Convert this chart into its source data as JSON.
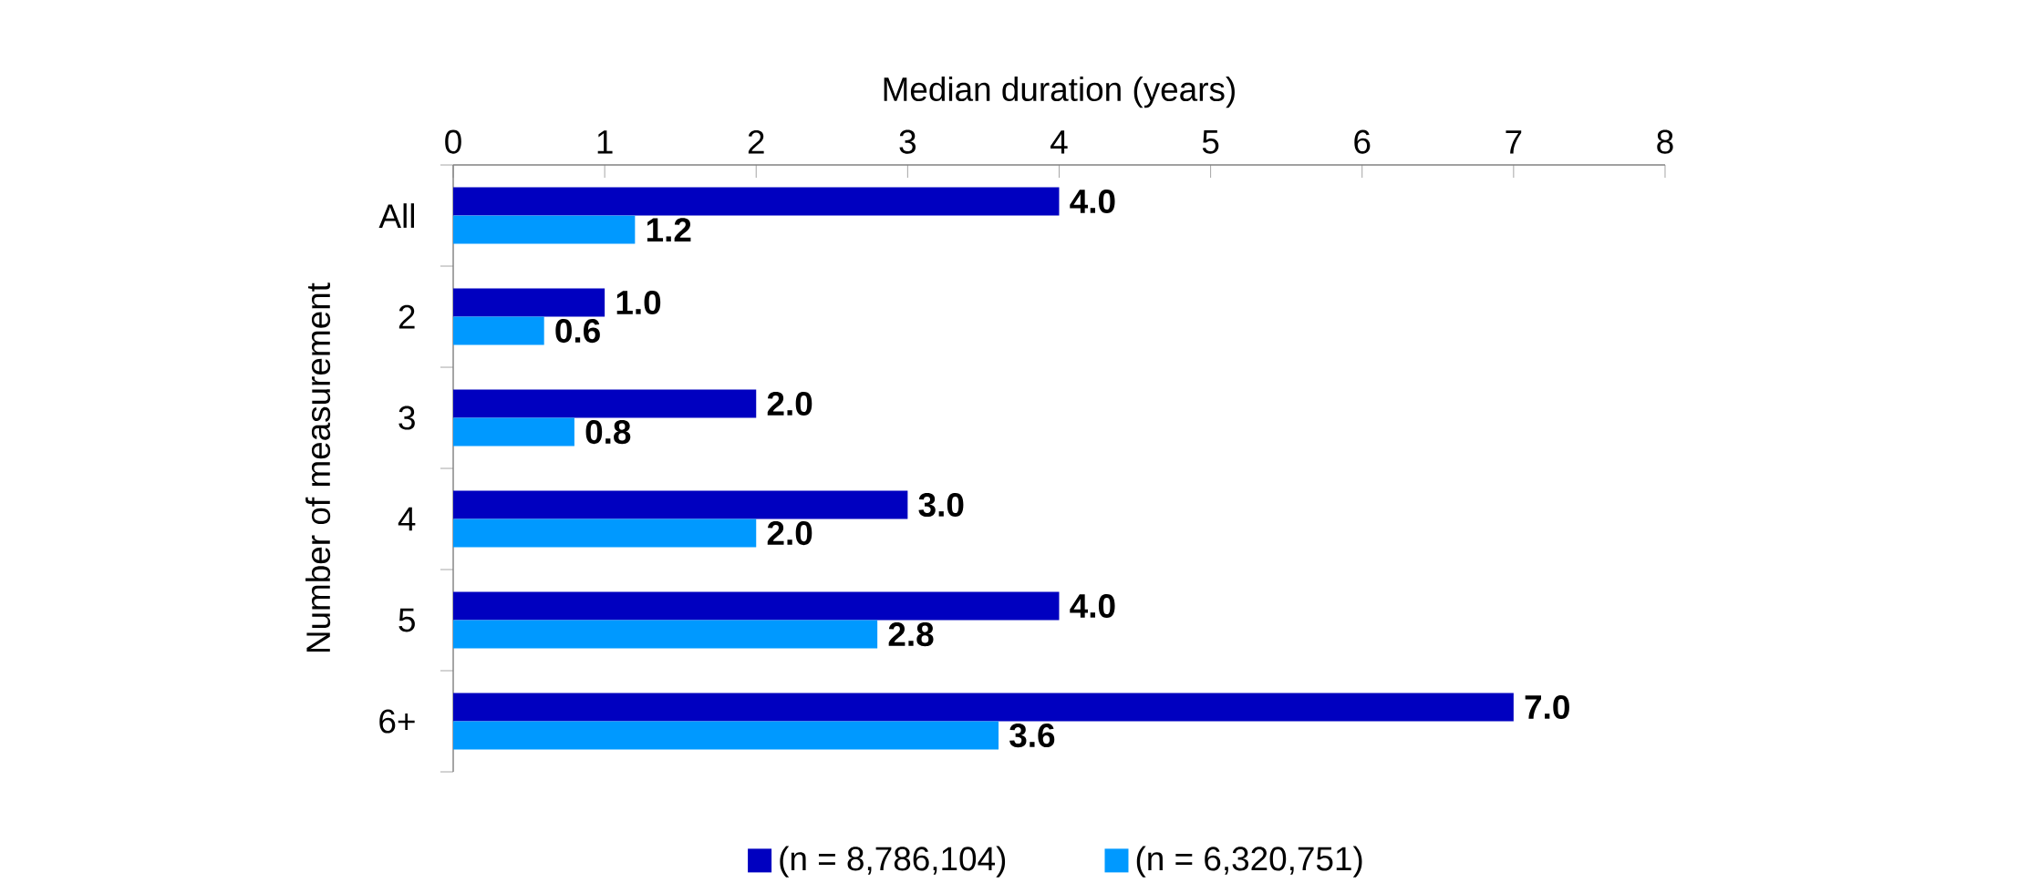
{
  "chart_data": {
    "type": "bar",
    "orientation": "horizontal",
    "xlabel": "Median duration (years)",
    "ylabel": "Number of measurement",
    "categories": [
      "All",
      "2",
      "3",
      "4",
      "5",
      "6+"
    ],
    "series": [
      {
        "name": "(n = 8,786,104)",
        "color": "#0000c0",
        "values": [
          4.0,
          1.0,
          2.0,
          3.0,
          4.0,
          7.0
        ],
        "value_labels": [
          "4.0",
          "1.0",
          "2.0",
          "3.0",
          "4.0",
          "7.0"
        ]
      },
      {
        "name": "(n = 6,320,751)",
        "color": "#0099ff",
        "values": [
          1.2,
          0.6,
          0.8,
          2.0,
          2.8,
          3.6
        ],
        "value_labels": [
          "1.2",
          "0.6",
          "0.8",
          "2.0",
          "2.8",
          "3.6"
        ]
      }
    ],
    "xlim": [
      0,
      8
    ],
    "xticks": [
      0,
      1,
      2,
      3,
      4,
      5,
      6,
      7,
      8
    ],
    "grid": false,
    "legend": "bottom"
  }
}
